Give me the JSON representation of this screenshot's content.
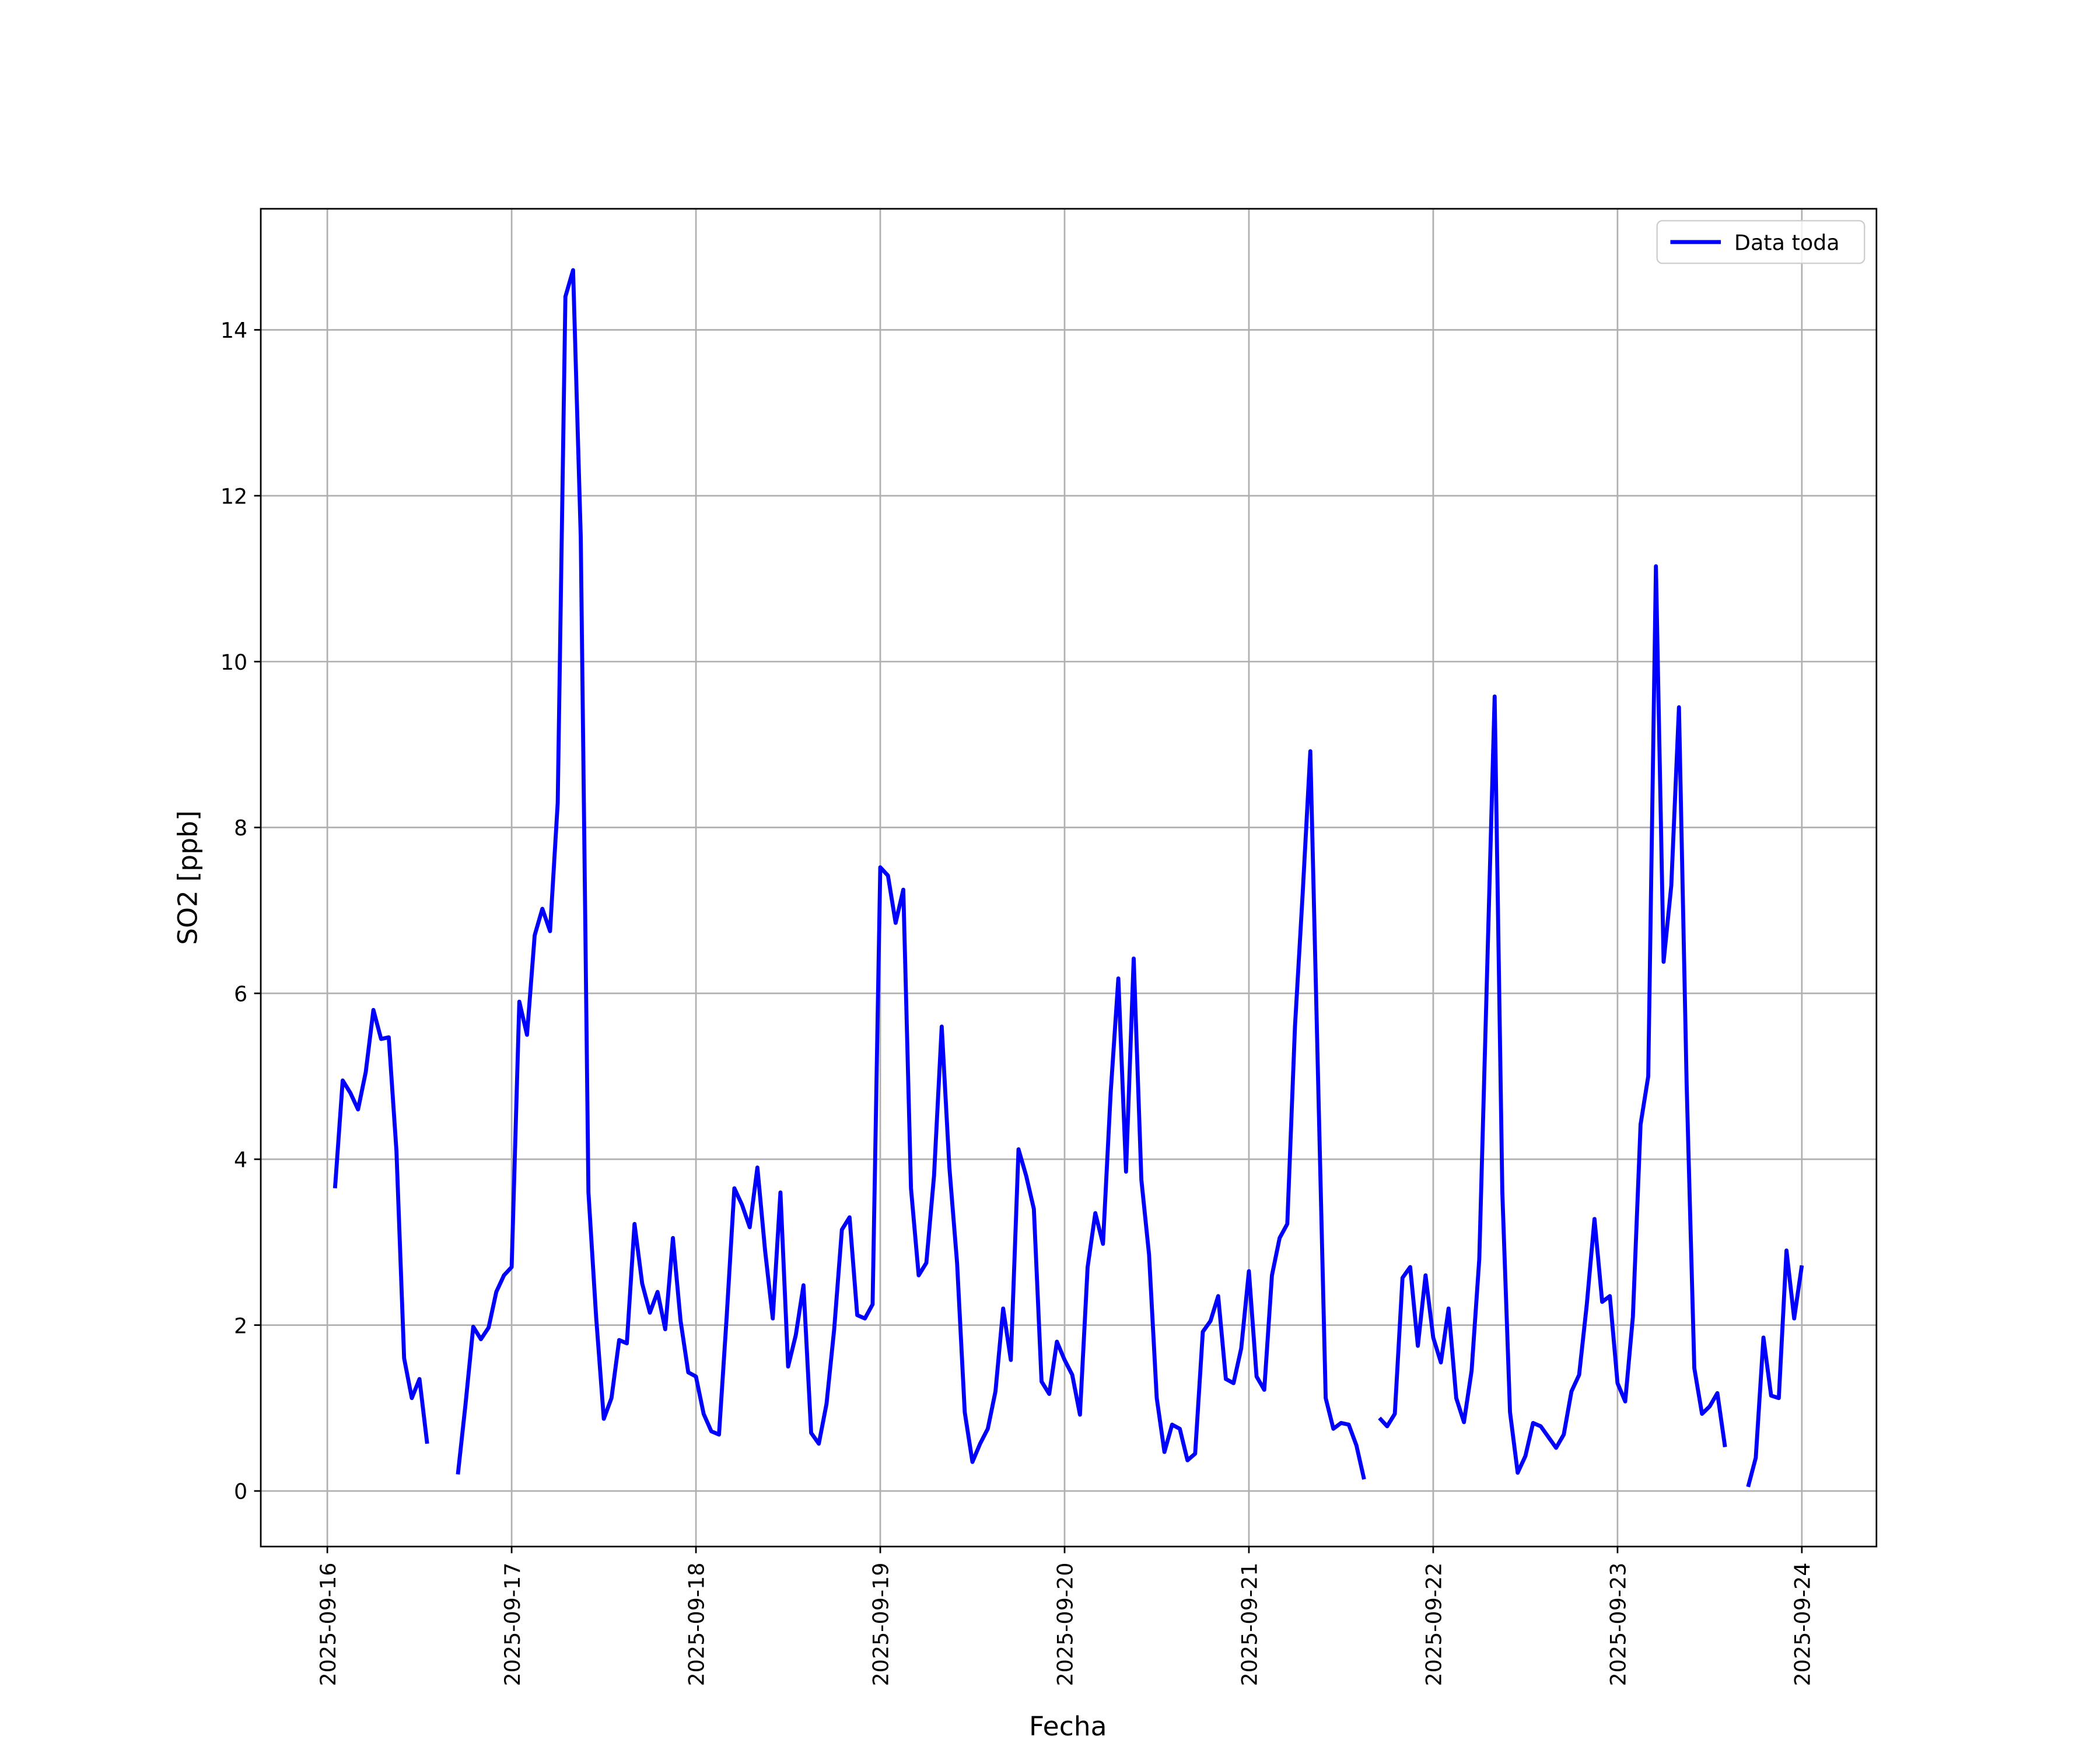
{
  "chart_data": {
    "type": "line",
    "xlabel": "Fecha",
    "ylabel": "SO2 [ppb]",
    "x": [
      "2025-09-16 01:00",
      "2025-09-16 02:00",
      "2025-09-16 03:00",
      "2025-09-16 04:00",
      "2025-09-16 05:00",
      "2025-09-16 06:00",
      "2025-09-16 07:00",
      "2025-09-16 08:00",
      "2025-09-16 09:00",
      "2025-09-16 10:00",
      "2025-09-16 11:00",
      "2025-09-16 12:00",
      "2025-09-16 13:00",
      "2025-09-16 14:00",
      "2025-09-16 15:00",
      "2025-09-16 16:00",
      "2025-09-16 17:00",
      "2025-09-16 18:00",
      "2025-09-16 19:00",
      "2025-09-16 20:00",
      "2025-09-16 21:00",
      "2025-09-16 22:00",
      "2025-09-16 23:00",
      "2025-09-17 00:00",
      "2025-09-17 01:00",
      "2025-09-17 02:00",
      "2025-09-17 03:00",
      "2025-09-17 04:00",
      "2025-09-17 05:00",
      "2025-09-17 06:00",
      "2025-09-17 07:00",
      "2025-09-17 08:00",
      "2025-09-17 09:00",
      "2025-09-17 10:00",
      "2025-09-17 11:00",
      "2025-09-17 12:00",
      "2025-09-17 13:00",
      "2025-09-17 14:00",
      "2025-09-17 15:00",
      "2025-09-17 16:00",
      "2025-09-17 17:00",
      "2025-09-17 18:00",
      "2025-09-17 19:00",
      "2025-09-17 20:00",
      "2025-09-17 21:00",
      "2025-09-17 22:00",
      "2025-09-17 23:00",
      "2025-09-18 00:00",
      "2025-09-18 01:00",
      "2025-09-18 02:00",
      "2025-09-18 03:00",
      "2025-09-18 04:00",
      "2025-09-18 05:00",
      "2025-09-18 06:00",
      "2025-09-18 07:00",
      "2025-09-18 08:00",
      "2025-09-18 09:00",
      "2025-09-18 10:00",
      "2025-09-18 11:00",
      "2025-09-18 12:00",
      "2025-09-18 13:00",
      "2025-09-18 14:00",
      "2025-09-18 15:00",
      "2025-09-18 16:00",
      "2025-09-18 17:00",
      "2025-09-18 18:00",
      "2025-09-18 19:00",
      "2025-09-18 20:00",
      "2025-09-18 21:00",
      "2025-09-18 22:00",
      "2025-09-18 23:00",
      "2025-09-19 00:00",
      "2025-09-19 01:00",
      "2025-09-19 02:00",
      "2025-09-19 03:00",
      "2025-09-19 04:00",
      "2025-09-19 05:00",
      "2025-09-19 06:00",
      "2025-09-19 07:00",
      "2025-09-19 08:00",
      "2025-09-19 09:00",
      "2025-09-19 10:00",
      "2025-09-19 11:00",
      "2025-09-19 12:00",
      "2025-09-19 13:00",
      "2025-09-19 14:00",
      "2025-09-19 15:00",
      "2025-09-19 16:00",
      "2025-09-19 17:00",
      "2025-09-19 18:00",
      "2025-09-19 19:00",
      "2025-09-19 20:00",
      "2025-09-19 21:00",
      "2025-09-19 22:00",
      "2025-09-19 23:00",
      "2025-09-20 00:00",
      "2025-09-20 01:00",
      "2025-09-20 02:00",
      "2025-09-20 03:00",
      "2025-09-20 04:00",
      "2025-09-20 05:00",
      "2025-09-20 06:00",
      "2025-09-20 07:00",
      "2025-09-20 08:00",
      "2025-09-20 09:00",
      "2025-09-20 10:00",
      "2025-09-20 11:00",
      "2025-09-20 12:00",
      "2025-09-20 13:00",
      "2025-09-20 14:00",
      "2025-09-20 15:00",
      "2025-09-20 16:00",
      "2025-09-20 17:00",
      "2025-09-20 18:00",
      "2025-09-20 19:00",
      "2025-09-20 20:00",
      "2025-09-20 21:00",
      "2025-09-20 22:00",
      "2025-09-20 23:00",
      "2025-09-21 00:00",
      "2025-09-21 01:00",
      "2025-09-21 02:00",
      "2025-09-21 03:00",
      "2025-09-21 04:00",
      "2025-09-21 05:00",
      "2025-09-21 06:00",
      "2025-09-21 07:00",
      "2025-09-21 08:00",
      "2025-09-21 09:00",
      "2025-09-21 10:00",
      "2025-09-21 11:00",
      "2025-09-21 12:00",
      "2025-09-21 13:00",
      "2025-09-21 14:00",
      "2025-09-21 15:00",
      "2025-09-21 16:00",
      "2025-09-21 17:00",
      "2025-09-21 18:00",
      "2025-09-21 19:00",
      "2025-09-21 20:00",
      "2025-09-21 21:00",
      "2025-09-21 22:00",
      "2025-09-21 23:00",
      "2025-09-22 00:00",
      "2025-09-22 01:00",
      "2025-09-22 02:00",
      "2025-09-22 03:00",
      "2025-09-22 04:00",
      "2025-09-22 05:00",
      "2025-09-22 06:00",
      "2025-09-22 07:00",
      "2025-09-22 08:00",
      "2025-09-22 09:00",
      "2025-09-22 10:00",
      "2025-09-22 11:00",
      "2025-09-22 12:00",
      "2025-09-22 13:00",
      "2025-09-22 14:00",
      "2025-09-22 15:00",
      "2025-09-22 16:00",
      "2025-09-22 17:00",
      "2025-09-22 18:00",
      "2025-09-22 19:00",
      "2025-09-22 20:00",
      "2025-09-22 21:00",
      "2025-09-22 22:00",
      "2025-09-22 23:00",
      "2025-09-23 00:00",
      "2025-09-23 01:00",
      "2025-09-23 02:00",
      "2025-09-23 03:00",
      "2025-09-23 04:00",
      "2025-09-23 05:00",
      "2025-09-23 06:00",
      "2025-09-23 07:00",
      "2025-09-23 08:00",
      "2025-09-23 09:00",
      "2025-09-23 10:00",
      "2025-09-23 11:00",
      "2025-09-23 12:00",
      "2025-09-23 13:00",
      "2025-09-23 14:00",
      "2025-09-23 15:00",
      "2025-09-23 16:00",
      "2025-09-23 17:00",
      "2025-09-23 18:00",
      "2025-09-23 19:00",
      "2025-09-23 20:00",
      "2025-09-23 21:00",
      "2025-09-23 22:00",
      "2025-09-23 23:00",
      "2025-09-24 00:00"
    ],
    "series": [
      {
        "name": "Data toda",
        "color": "#0000ff",
        "values": [
          3.65,
          4.95,
          4.8,
          4.6,
          5.05,
          5.8,
          5.45,
          5.47,
          4.1,
          1.6,
          1.12,
          1.35,
          0.57,
          null,
          null,
          null,
          0.2,
          1.05,
          1.98,
          1.83,
          1.97,
          2.4,
          2.6,
          2.7,
          5.9,
          5.5,
          6.7,
          7.02,
          6.75,
          8.3,
          14.4,
          14.72,
          11.5,
          3.6,
          2.1,
          0.87,
          1.12,
          1.82,
          1.78,
          3.22,
          2.5,
          2.15,
          2.4,
          1.95,
          3.05,
          2.05,
          1.43,
          1.38,
          0.93,
          0.72,
          0.68,
          2.1,
          3.65,
          3.45,
          3.18,
          3.9,
          2.9,
          2.08,
          3.6,
          1.5,
          1.88,
          2.48,
          0.7,
          0.57,
          1.05,
          1.95,
          3.15,
          3.3,
          2.12,
          2.08,
          2.25,
          7.52,
          7.42,
          6.85,
          7.25,
          3.65,
          2.6,
          2.75,
          3.8,
          5.6,
          3.9,
          2.75,
          0.95,
          0.35,
          0.57,
          0.75,
          1.2,
          2.2,
          1.58,
          4.12,
          3.8,
          3.4,
          1.32,
          1.17,
          1.8,
          1.58,
          1.4,
          0.92,
          2.7,
          3.35,
          2.98,
          4.8,
          6.18,
          3.85,
          6.42,
          3.75,
          2.85,
          1.12,
          0.47,
          0.8,
          0.75,
          0.37,
          0.45,
          1.92,
          2.05,
          2.35,
          1.35,
          1.3,
          1.72,
          2.65,
          1.38,
          1.22,
          2.6,
          3.05,
          3.22,
          5.6,
          7.2,
          8.92,
          5.0,
          1.12,
          0.75,
          0.82,
          0.8,
          0.55,
          0.14,
          null,
          0.88,
          0.78,
          0.93,
          2.57,
          2.7,
          1.75,
          2.6,
          1.85,
          1.55,
          2.2,
          1.12,
          0.83,
          1.45,
          2.8,
          6.2,
          9.58,
          3.6,
          0.95,
          0.22,
          0.42,
          0.82,
          0.78,
          0.65,
          0.52,
          0.68,
          1.2,
          1.4,
          2.25,
          3.28,
          2.28,
          2.35,
          1.3,
          1.08,
          2.1,
          4.42,
          5.0,
          11.15,
          6.38,
          7.3,
          9.45,
          4.9,
          1.48,
          0.93,
          1.02,
          1.18,
          0.53,
          null,
          null,
          0.05,
          0.4,
          1.85,
          1.15,
          1.12,
          2.9,
          2.08,
          2.72
        ]
      }
    ],
    "xlim": [
      "2025-09-15 15:20",
      "2025-09-24 09:43"
    ],
    "xticks": [
      "2025-09-16",
      "2025-09-17",
      "2025-09-18",
      "2025-09-19",
      "2025-09-20",
      "2025-09-21",
      "2025-09-22",
      "2025-09-23",
      "2025-09-24"
    ],
    "ylim": [
      -0.67,
      15.46
    ],
    "yticks": [
      0,
      2,
      4,
      6,
      8,
      10,
      12,
      14
    ],
    "grid": true,
    "legend": "upper right"
  }
}
